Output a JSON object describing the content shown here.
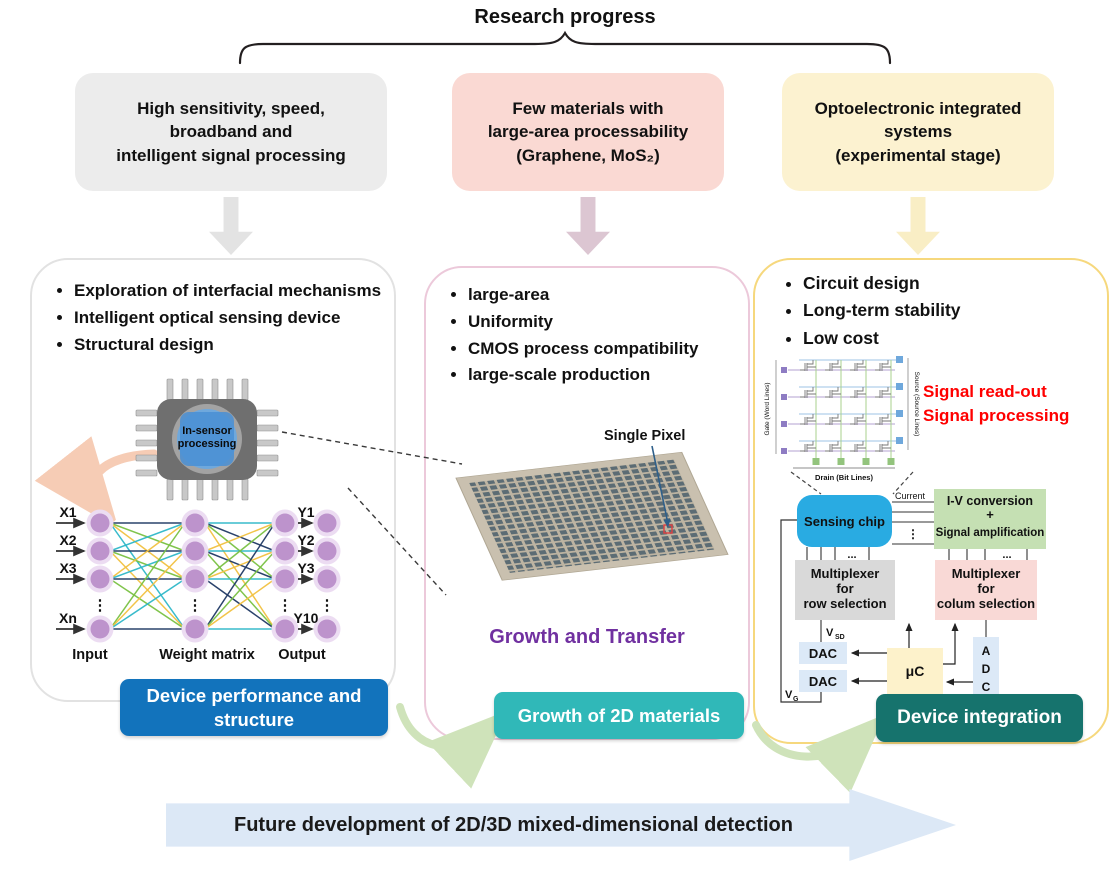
{
  "title": "Research progress",
  "top_boxes": [
    {
      "text": "High sensitivity, speed,\nbroadband and\nintelligent signal processing"
    },
    {
      "text": "Few materials with\nlarge-area processability\n(Graphene, MoS₂)"
    },
    {
      "text": "Optoelectronic integrated\nsystems\n(experimental stage)"
    }
  ],
  "left_panel": {
    "bullets": [
      "Exploration of interfacial mechanisms",
      "Intelligent optical sensing device",
      "Structural design"
    ],
    "chip_label": "In-sensor\nprocessing",
    "nn": {
      "inputs": [
        "X1",
        "X2",
        "X3",
        "Xn"
      ],
      "outputs": [
        "Y1",
        "Y2",
        "Y3",
        "Y10"
      ],
      "dots": "⋮",
      "layer_labels": [
        "Input",
        "Weight matrix",
        "Output"
      ]
    },
    "footer": "Device performance and\nstructure"
  },
  "middle_panel": {
    "bullets": [
      "large-area",
      "Uniformity",
      "CMOS process compatibility",
      "large-scale production"
    ],
    "pixel_label": "Single Pixel",
    "caption": "Growth and Transfer",
    "footer": "Growth of 2D materials"
  },
  "right_panel": {
    "bullets": [
      "Circuit design",
      "Long-term stability",
      "Low cost"
    ],
    "array_labels": {
      "gate": "Gate (Word Lines)",
      "source": "Source (Source Lines)",
      "drain": "Drain (Bit Lines)"
    },
    "red_notes": [
      "Signal read-out",
      "Signal processing"
    ],
    "blocks": {
      "sensing_chip": "Sensing chip",
      "iv": [
        "I-V conversion",
        "+",
        "Signal amplification"
      ],
      "mux_row": [
        "Multiplexer",
        "for",
        "row selection"
      ],
      "mux_col": [
        "Multiplexer",
        "for",
        "colum selection"
      ],
      "dac": "DAC",
      "mc": "μC",
      "adc": [
        "A",
        "D",
        "C"
      ],
      "current": "Current",
      "v": "V",
      "sub_sd": "SD",
      "sub_g": "G",
      "vdots": "⋮",
      "hdots": "..."
    },
    "footer": "Device integration"
  },
  "bottom_arrow": "Future development of 2D/3D mixed-dimensional detection",
  "colors": {
    "footer_blue": "#1273bc",
    "footer_teal": "#30b8b8",
    "footer_dark_teal": "#16736d",
    "sensing_chip_blue": "#29abe2",
    "iv_green": "#c5e0b3",
    "mux_gray": "#d9d9d9",
    "mux_pink": "#f9d9d6",
    "dac_adc_blue": "#dce9f7",
    "mc_yellow": "#fdf2cb",
    "note_red": "#ff0000",
    "caption_purple": "#7030a0",
    "pixel_label_blue": "#1f4e79"
  }
}
